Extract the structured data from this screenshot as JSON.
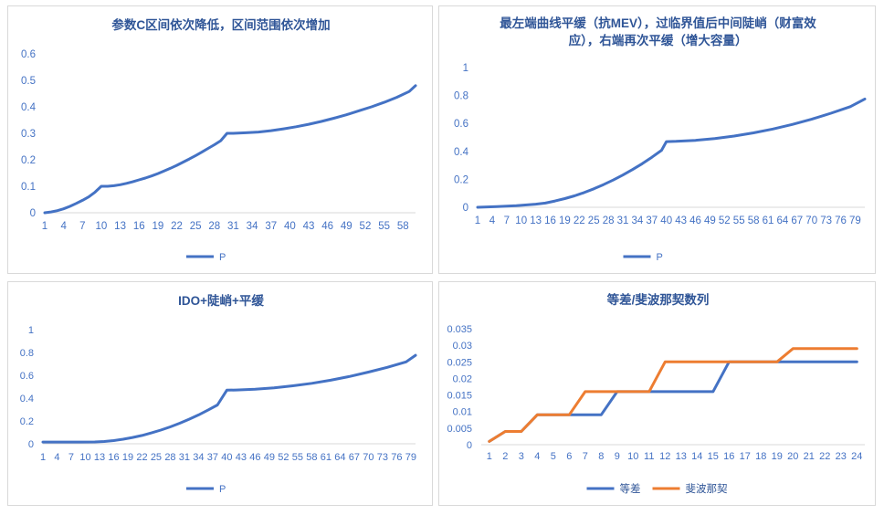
{
  "chart_data": [
    {
      "type": "line",
      "title": "参数C区间依次降低，区间范围依次增加",
      "xlabel": "",
      "ylabel": "",
      "ylim": [
        0,
        0.6
      ],
      "yticks": [
        "0",
        "0.1",
        "0.2",
        "0.3",
        "0.4",
        "0.5",
        "0.6"
      ],
      "x_tick_labels": [
        "1",
        "4",
        "7",
        "10",
        "13",
        "16",
        "19",
        "22",
        "25",
        "28",
        "31",
        "34",
        "37",
        "40",
        "43",
        "46",
        "49",
        "52",
        "55",
        "58"
      ],
      "x_range": [
        1,
        60
      ],
      "grid": false,
      "legend": "bottom",
      "series": [
        {
          "name": "P",
          "color": "#4472c4",
          "points": [
            [
              1,
              0
            ],
            [
              2,
              0.003
            ],
            [
              3,
              0.008
            ],
            [
              4,
              0.015
            ],
            [
              5,
              0.024
            ],
            [
              6,
              0.035
            ],
            [
              7,
              0.047
            ],
            [
              8,
              0.06
            ],
            [
              9,
              0.078
            ],
            [
              10,
              0.1
            ],
            [
              11,
              0.1
            ],
            [
              12,
              0.102
            ],
            [
              13,
              0.106
            ],
            [
              14,
              0.111
            ],
            [
              15,
              0.117
            ],
            [
              16,
              0.124
            ],
            [
              17,
              0.131
            ],
            [
              18,
              0.139
            ],
            [
              19,
              0.148
            ],
            [
              20,
              0.158
            ],
            [
              21,
              0.168
            ],
            [
              22,
              0.179
            ],
            [
              23,
              0.191
            ],
            [
              24,
              0.203
            ],
            [
              25,
              0.216
            ],
            [
              26,
              0.229
            ],
            [
              27,
              0.243
            ],
            [
              28,
              0.257
            ],
            [
              29,
              0.272
            ],
            [
              30,
              0.3
            ],
            [
              31,
              0.3
            ],
            [
              33,
              0.302
            ],
            [
              35,
              0.305
            ],
            [
              37,
              0.31
            ],
            [
              39,
              0.317
            ],
            [
              41,
              0.325
            ],
            [
              43,
              0.334
            ],
            [
              45,
              0.345
            ],
            [
              47,
              0.357
            ],
            [
              49,
              0.37
            ],
            [
              51,
              0.385
            ],
            [
              53,
              0.4
            ],
            [
              55,
              0.417
            ],
            [
              57,
              0.436
            ],
            [
              59,
              0.458
            ],
            [
              60,
              0.48
            ]
          ]
        }
      ]
    },
    {
      "type": "line",
      "title": "最左端曲线平缓（抗MEV），过临界值后中间陡峭（财富效应），右端再次平缓（增大容量）",
      "title_lines": [
        "最左端曲线平缓（抗MEV），过临界值后中间陡峭（财富效",
        "应），右端再次平缓（增大容量）"
      ],
      "xlabel": "",
      "ylabel": "",
      "ylim": [
        0,
        1
      ],
      "yticks": [
        "0",
        "0.2",
        "0.4",
        "0.6",
        "0.8",
        "1"
      ],
      "x_tick_labels": [
        "1",
        "4",
        "7",
        "10",
        "13",
        "16",
        "19",
        "22",
        "25",
        "28",
        "31",
        "34",
        "37",
        "40",
        "43",
        "46",
        "49",
        "52",
        "55",
        "58",
        "61",
        "64",
        "67",
        "70",
        "73",
        "76",
        "79"
      ],
      "x_range": [
        1,
        81
      ],
      "grid": false,
      "legend": "bottom",
      "series": [
        {
          "name": "P",
          "color": "#4472c4",
          "points": [
            [
              1,
              0
            ],
            [
              5,
              0.005
            ],
            [
              9,
              0.012
            ],
            [
              13,
              0.022
            ],
            [
              15,
              0.03
            ],
            [
              17,
              0.045
            ],
            [
              19,
              0.062
            ],
            [
              21,
              0.082
            ],
            [
              23,
              0.105
            ],
            [
              25,
              0.132
            ],
            [
              27,
              0.162
            ],
            [
              29,
              0.195
            ],
            [
              31,
              0.231
            ],
            [
              33,
              0.27
            ],
            [
              35,
              0.312
            ],
            [
              37,
              0.358
            ],
            [
              39,
              0.408
            ],
            [
              40,
              0.47
            ],
            [
              42,
              0.472
            ],
            [
              46,
              0.479
            ],
            [
              50,
              0.492
            ],
            [
              54,
              0.51
            ],
            [
              58,
              0.533
            ],
            [
              62,
              0.56
            ],
            [
              66,
              0.593
            ],
            [
              70,
              0.63
            ],
            [
              74,
              0.673
            ],
            [
              78,
              0.72
            ],
            [
              81,
              0.775
            ]
          ]
        }
      ]
    },
    {
      "type": "line",
      "title": "IDO+陡峭+平缓",
      "xlabel": "",
      "ylabel": "",
      "ylim": [
        0,
        1
      ],
      "yticks": [
        "0",
        "0.2",
        "0.4",
        "0.6",
        "0.8",
        "1"
      ],
      "x_tick_labels": [
        "1",
        "4",
        "7",
        "10",
        "13",
        "16",
        "19",
        "22",
        "25",
        "28",
        "31",
        "34",
        "37",
        "40",
        "43",
        "46",
        "49",
        "52",
        "55",
        "58",
        "61",
        "64",
        "67",
        "70",
        "73",
        "76",
        "79"
      ],
      "x_range": [
        1,
        80
      ],
      "grid": false,
      "legend": "bottom",
      "series": [
        {
          "name": "P",
          "color": "#4472c4",
          "points": [
            [
              1,
              0.015
            ],
            [
              5,
              0.015
            ],
            [
              9,
              0.015
            ],
            [
              12,
              0.016
            ],
            [
              14,
              0.02
            ],
            [
              16,
              0.028
            ],
            [
              18,
              0.04
            ],
            [
              20,
              0.055
            ],
            [
              22,
              0.073
            ],
            [
              24,
              0.095
            ],
            [
              26,
              0.12
            ],
            [
              28,
              0.148
            ],
            [
              30,
              0.18
            ],
            [
              32,
              0.215
            ],
            [
              34,
              0.253
            ],
            [
              36,
              0.295
            ],
            [
              38,
              0.34
            ],
            [
              40,
              0.47
            ],
            [
              42,
              0.471
            ],
            [
              46,
              0.478
            ],
            [
              50,
              0.49
            ],
            [
              54,
              0.508
            ],
            [
              58,
              0.53
            ],
            [
              62,
              0.557
            ],
            [
              66,
              0.59
            ],
            [
              70,
              0.628
            ],
            [
              74,
              0.67
            ],
            [
              78,
              0.718
            ],
            [
              80,
              0.775
            ]
          ]
        }
      ]
    },
    {
      "type": "line",
      "title": "等差/斐波那契数列",
      "xlabel": "",
      "ylabel": "",
      "ylim": [
        0,
        0.035
      ],
      "yticks": [
        "0",
        "0.005",
        "0.01",
        "0.015",
        "0.02",
        "0.025",
        "0.03",
        "0.035"
      ],
      "categories": [
        "1",
        "2",
        "3",
        "4",
        "5",
        "6",
        "7",
        "8",
        "9",
        "10",
        "11",
        "12",
        "13",
        "14",
        "15",
        "16",
        "17",
        "18",
        "19",
        "20",
        "21",
        "22",
        "23",
        "24"
      ],
      "grid": false,
      "legend": "bottom",
      "series": [
        {
          "name": "等差",
          "color": "#4472c4",
          "values": [
            0.001,
            0.004,
            0.004,
            0.009,
            0.009,
            0.009,
            0.009,
            0.009,
            0.016,
            0.016,
            0.016,
            0.016,
            0.016,
            0.016,
            0.016,
            0.025,
            0.025,
            0.025,
            0.025,
            0.025,
            0.025,
            0.025,
            0.025,
            0.025
          ]
        },
        {
          "name": "斐波那契",
          "color": "#ed7d31",
          "values": [
            0.001,
            0.004,
            0.004,
            0.009,
            0.009,
            0.009,
            0.016,
            0.016,
            0.016,
            0.016,
            0.016,
            0.025,
            0.025,
            0.025,
            0.025,
            0.025,
            0.025,
            0.025,
            0.025,
            0.029,
            0.029,
            0.029,
            0.029,
            0.029
          ]
        }
      ]
    }
  ]
}
